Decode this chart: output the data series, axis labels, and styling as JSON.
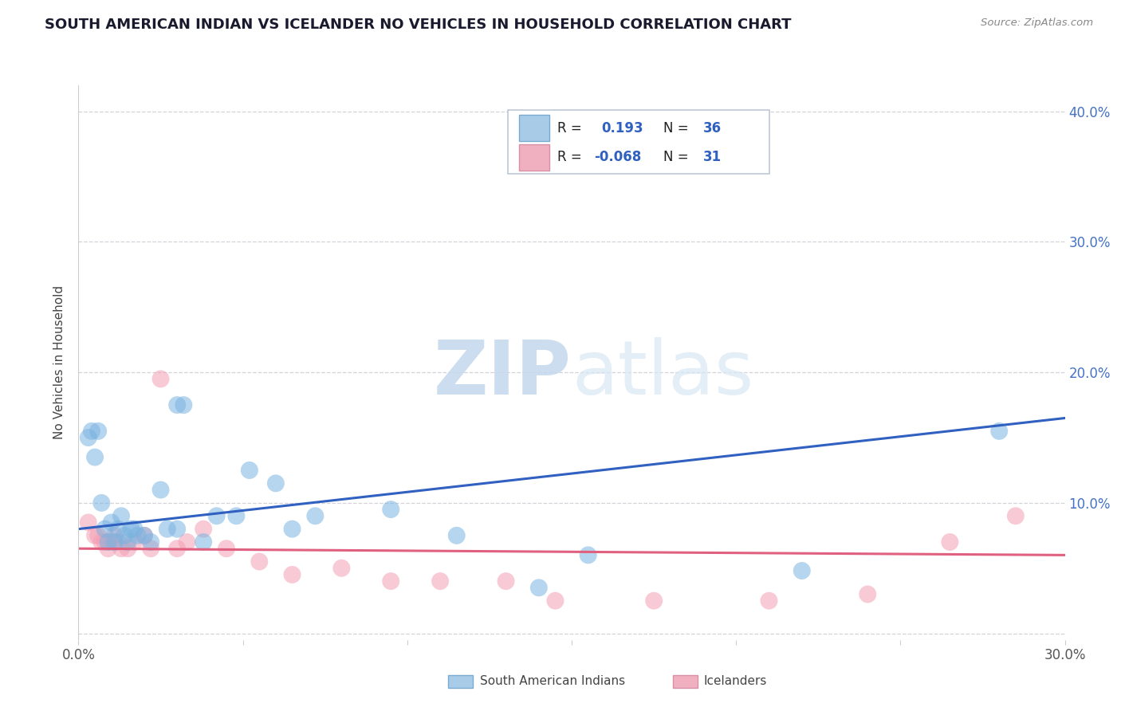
{
  "title": "SOUTH AMERICAN INDIAN VS ICELANDER NO VEHICLES IN HOUSEHOLD CORRELATION CHART",
  "source": "Source: ZipAtlas.com",
  "ylabel": "No Vehicles in Household",
  "xlim": [
    0.0,
    0.3
  ],
  "ylim": [
    -0.005,
    0.42
  ],
  "x_ticks": [
    0.0,
    0.05,
    0.1,
    0.15,
    0.2,
    0.25,
    0.3
  ],
  "y_ticks": [
    0.0,
    0.1,
    0.2,
    0.3,
    0.4
  ],
  "y_tick_labels_right": [
    "",
    "10.0%",
    "20.0%",
    "30.0%",
    "40.0%"
  ],
  "watermark_zip": "ZIP",
  "watermark_atlas": "atlas",
  "blue_scatter_x": [
    0.003,
    0.004,
    0.005,
    0.006,
    0.007,
    0.008,
    0.009,
    0.01,
    0.011,
    0.012,
    0.013,
    0.014,
    0.015,
    0.016,
    0.017,
    0.018,
    0.02,
    0.022,
    0.025,
    0.027,
    0.03,
    0.03,
    0.032,
    0.038,
    0.042,
    0.048,
    0.052,
    0.06,
    0.065,
    0.072,
    0.095,
    0.115,
    0.14,
    0.155,
    0.22,
    0.28
  ],
  "blue_scatter_y": [
    0.15,
    0.155,
    0.135,
    0.155,
    0.1,
    0.08,
    0.07,
    0.085,
    0.07,
    0.08,
    0.09,
    0.075,
    0.07,
    0.08,
    0.08,
    0.075,
    0.075,
    0.07,
    0.11,
    0.08,
    0.175,
    0.08,
    0.175,
    0.07,
    0.09,
    0.09,
    0.125,
    0.115,
    0.08,
    0.09,
    0.095,
    0.075,
    0.035,
    0.06,
    0.048,
    0.155
  ],
  "pink_scatter_x": [
    0.003,
    0.005,
    0.006,
    0.007,
    0.008,
    0.009,
    0.01,
    0.011,
    0.012,
    0.013,
    0.015,
    0.017,
    0.02,
    0.022,
    0.025,
    0.03,
    0.033,
    0.038,
    0.045,
    0.055,
    0.065,
    0.08,
    0.095,
    0.11,
    0.13,
    0.145,
    0.175,
    0.21,
    0.24,
    0.265,
    0.285
  ],
  "pink_scatter_y": [
    0.085,
    0.075,
    0.075,
    0.07,
    0.07,
    0.065,
    0.07,
    0.075,
    0.07,
    0.065,
    0.065,
    0.07,
    0.075,
    0.065,
    0.195,
    0.065,
    0.07,
    0.08,
    0.065,
    0.055,
    0.045,
    0.05,
    0.04,
    0.04,
    0.04,
    0.025,
    0.025,
    0.025,
    0.03,
    0.07,
    0.09
  ],
  "blue_line_x": [
    0.0,
    0.3
  ],
  "blue_line_y": [
    0.08,
    0.165
  ],
  "pink_line_x": [
    0.0,
    0.3
  ],
  "pink_line_y": [
    0.065,
    0.06
  ],
  "title_color": "#1a1a2e",
  "title_fontsize": 13,
  "blue_scatter_color": "#7ab3e0",
  "pink_scatter_color": "#f4a0b5",
  "blue_line_color": "#3060c0",
  "pink_line_color": "#e06080",
  "grid_color": "#c8c8d0",
  "right_tick_color": "#4472c4",
  "background_color": "#ffffff",
  "legend_blue_fill": "#a8cce8",
  "legend_blue_edge": "#7aaad0",
  "legend_pink_fill": "#f0b0c0",
  "legend_pink_edge": "#d890a8",
  "legend_text_color": "#3060c0",
  "legend_r_color": "#222222",
  "scatter_size": 250,
  "scatter_alpha": 0.55
}
